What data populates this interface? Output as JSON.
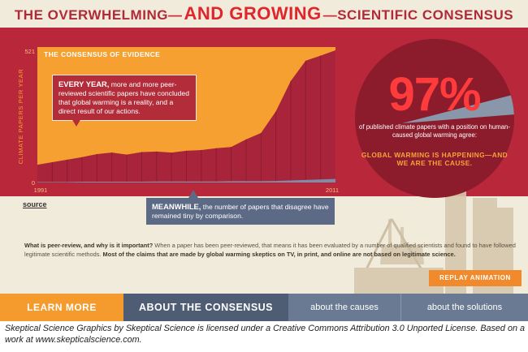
{
  "title": {
    "part1": "THE OVERWHELMING",
    "dash1": "—",
    "part2": "AND GROWING",
    "dash2": "—",
    "part3": "SCIENTIFIC CONSENSUS"
  },
  "chart_data": {
    "type": "area",
    "title": "THE CONSENSUS OF EVIDENCE",
    "ylabel": "CLIMATE PAPERS PER YEAR",
    "x_tick_labels": [
      "1991",
      "2011"
    ],
    "y_tick_labels": [
      "521",
      "0"
    ],
    "ylim": [
      0,
      521
    ],
    "x": [
      1991,
      1992,
      1993,
      1994,
      1995,
      1996,
      1997,
      1998,
      1999,
      2000,
      2001,
      2002,
      2003,
      2004,
      2005,
      2006,
      2007,
      2008,
      2009,
      2010,
      2011
    ],
    "series": [
      {
        "name": "",
        "color": "#a8243a",
        "values": [
          70,
          80,
          90,
          100,
          112,
          118,
          110,
          120,
          122,
          118,
          125,
          128,
          135,
          140,
          170,
          195,
          280,
          400,
          480,
          500,
          521
        ]
      },
      {
        "name": "",
        "color": "#7a8eaa",
        "values": [
          2,
          2,
          2,
          3,
          3,
          3,
          3,
          3,
          4,
          4,
          4,
          4,
          4,
          5,
          5,
          5,
          6,
          8,
          10,
          12,
          14
        ]
      }
    ],
    "colors": {
      "background": "#f5a030",
      "axis": "#f5a030"
    }
  },
  "callouts": {
    "every_year_bold": "EVERY YEAR,",
    "every_year_text": " more and more peer-reviewed scientific papers have concluded that global warming is a reality, and a direct result of our actions.",
    "meanwhile_bold": "MEANWHILE,",
    "meanwhile_text": " the number of papers that disagree have remained tiny by comparison."
  },
  "circle": {
    "percent": "97%",
    "text": "of published climate papers with a position on human-caused global warming agree:",
    "highlight": "GLOBAL WARMING IS HAPPENING—AND WE ARE THE CAUSE.",
    "agree_fraction": 0.97
  },
  "source_link": "source",
  "peer_review": {
    "question": "What is peer-review, and why is it important?",
    "text1": " When a paper has been peer-reviewed, that means it has been evaluated by a number of qualified scientists and found to have followed legitimate scientific methods. ",
    "bold2": "Most of the claims that are made by global warming skeptics on TV, in print, and online are not based on legitimate science."
  },
  "replay_label": "REPLAY ANIMATION",
  "nav": {
    "learn_more": "LEARN MORE",
    "about_consensus": "ABOUT THE CONSENSUS",
    "about_causes": "about the causes",
    "about_solutions": "about the solutions"
  },
  "caption": "Skeptical Science Graphics by Skeptical Science is licensed under a Creative Commons Attribution 3.0 Unported License. Based on a work at www.skepticalscience.com.",
  "colors": {
    "brand_red": "#b8273a",
    "accent_orange": "#f5a030",
    "slate": "#5c6a86",
    "cream": "#f1ebdc"
  }
}
